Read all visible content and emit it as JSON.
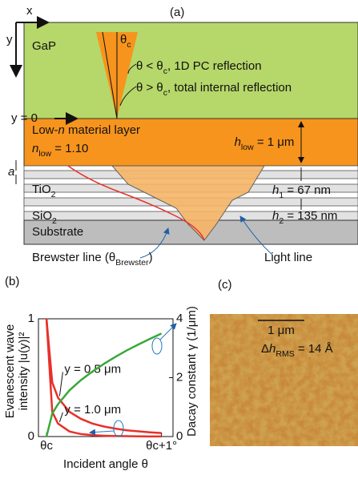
{
  "panel_a": {
    "label": "(a)",
    "axis_x": "x",
    "axis_y": "y",
    "gap": "GaP",
    "theta_c": {
      "text": "θ",
      "sub": "c"
    },
    "reflection_pc": {
      "text": "θ < θ",
      "sub": "c",
      "rest": ", 1D PC reflection"
    },
    "reflection_tir": {
      "text": "θ > θ",
      "sub": "c",
      "rest": ", total internal reflection"
    },
    "interface": "y = 0",
    "layer_name": {
      "text": "Low-",
      "italic": "n",
      "rest": " material layer"
    },
    "n_low": {
      "text": "n",
      "sub": "low",
      "rest": " = 1.10"
    },
    "h_low": {
      "text": "h",
      "sub": "low",
      "rest": " = 1 μm"
    },
    "period": "a",
    "tio2": {
      "text": "TiO",
      "sub": "2"
    },
    "sio2": {
      "text": "SiO",
      "sub": "2"
    },
    "h1": {
      "text": "h",
      "sub": "1",
      "rest": " = 67 nm"
    },
    "h2": {
      "text": "h",
      "sub": "2",
      "rest": " = 135 nm"
    },
    "substrate": "Substrate",
    "brewster": {
      "text": "Brewster line (θ",
      "sub": "Brewster",
      "rest": ")"
    },
    "light_line": "Light line"
  },
  "chart_data": {
    "type": "line",
    "label": "(b)",
    "xlabel": "Incident angle θ",
    "ylabel": [
      "Evanescent wave",
      "intensity |u(y)|²"
    ],
    "y2label": "Dacay constant γ (1/μm)",
    "x": [
      0,
      0.05,
      0.1,
      0.2,
      0.3,
      0.4,
      0.5,
      0.6,
      0.7,
      0.8,
      0.9,
      1.0
    ],
    "xlim": [
      -0.07,
      1.1
    ],
    "xticks": [
      {
        "value": 0,
        "label": "θc"
      },
      {
        "value": 1,
        "label": "θc+1°"
      }
    ],
    "ylim": [
      0,
      1
    ],
    "yticks": [
      0,
      1
    ],
    "y2lim": [
      0,
      4
    ],
    "y2ticks": [
      0,
      2,
      4
    ],
    "series": [
      {
        "name": "y = 0.5 μm",
        "color": "#e8302a",
        "values": [
          1,
          0.46,
          0.33,
          0.21,
          0.15,
          0.11,
          0.085,
          0.067,
          0.053,
          0.044,
          0.036,
          0.03
        ]
      },
      {
        "name": "y = 1.0 μm",
        "color": "#e8302a",
        "values": [
          1,
          0.21,
          0.11,
          0.043,
          0.021,
          0.012,
          0.007,
          0.004,
          0.003,
          0.002,
          0.001,
          0.001
        ]
      },
      {
        "color": "#3aa83a",
        "axis": "y2",
        "values": [
          0,
          0.78,
          1.1,
          1.57,
          1.92,
          2.21,
          2.47,
          2.71,
          2.93,
          3.13,
          3.32,
          3.5
        ]
      }
    ]
  },
  "panel_c": {
    "label": "(c)",
    "scale_bar": "1 μm",
    "roughness": {
      "text": "Δ",
      "italic": "h",
      "sub": "RMS",
      "rest": " = 14 Å"
    }
  }
}
